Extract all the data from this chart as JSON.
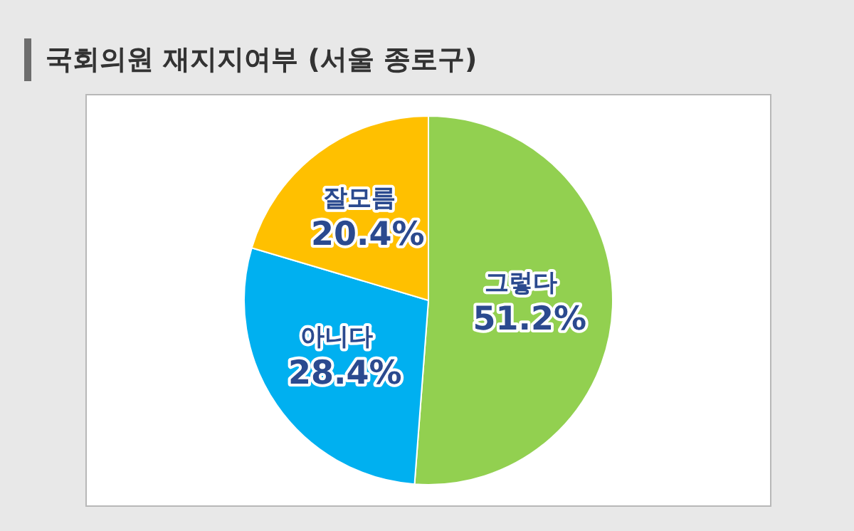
{
  "chart_data": {
    "type": "pie",
    "title": "국회의원 재지지여부 (서울 종로구)",
    "categories": [
      "그렇다",
      "아니다",
      "잘모름"
    ],
    "values": [
      51.2,
      28.4,
      20.4
    ],
    "colors": [
      "#92d050",
      "#00b0f0",
      "#ffc000"
    ],
    "value_labels": [
      "51.2%",
      "28.4%",
      "20.4%"
    ]
  }
}
